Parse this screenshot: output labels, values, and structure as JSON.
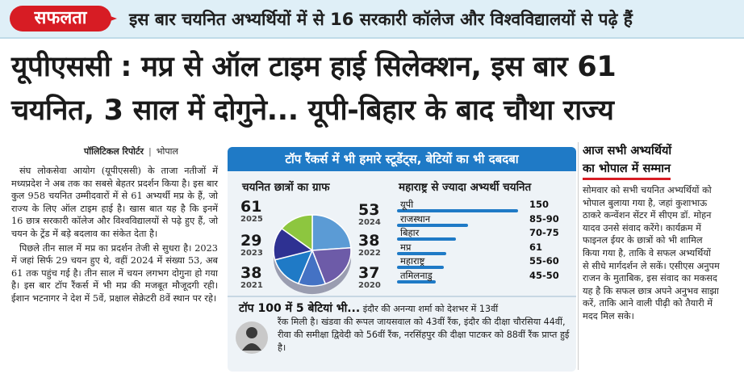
{
  "top_strip": {
    "badge": "सफलता",
    "text": "इस बार चयनित अभ्यर्थियों में से 16 सरकारी कॉलेज और विश्वविद्यालयों से पढ़े हैं"
  },
  "headline": {
    "line1": "यूपीएससी : मप्र से ऑल टाइम हाई सिलेक्शन, इस बार 61",
    "line2": "चयनित, 3 साल में दोगुने... यूपी-बिहार के बाद चौथा राज्य"
  },
  "byline": {
    "reporter": "पॉलिटिकल रिपोर्टर",
    "city": "भोपाल"
  },
  "left_column": {
    "para1": "संघ लोकसेवा आयोग (यूपीएससी) के ताजा नतीजों में मध्यप्रदेश ने अब तक का सबसे बेहतर प्रदर्शन किया है। इस बार कुल 958 चयनित उम्मीदवारों में से 61 अभ्यर्थी मप्र के हैं, जो राज्य के लिए ऑल टाइम हाई है। खास बात यह है कि इनमें 16 छात्र सरकारी कॉलेज और विश्वविद्यालयों से पढ़े हुए हैं, जो चयन के ट्रेंड में बड़े बदलाव का संकेत देता है।",
    "para2": "पिछले तीन साल में मप्र का प्रदर्शन तेजी से सुधरा है। 2023 में जहां सिर्फ 29 चयन हुए थे, वहीं 2024 में संख्या 53, अब 61 तक पहुंच गई है। तीन साल में चयन लगभग दोगुना हो गया है। इस बार टॉप रैंकर्स में भी मप्र की मजबूत मौजूदगी रही। ईशान भटनागर ने देश में 5वें, प्रक्षाल सेक्रेटरी 8वें स्थान पर रहे।"
  },
  "infographic": {
    "header": "टॉप रैंकर्स में भी हमारे स्टूडेंट्स, बेटियों का भी दबदबा",
    "graph_title": "चयनित छात्रों का ग्राफ",
    "states_title": "महाराष्ट्र से ज्यादा अभ्यर्थी चयनित"
  },
  "chart_data": [
    {
      "type": "pie",
      "title": "चयनित छात्रों का ग्राफ",
      "categories": [
        "2025",
        "2024",
        "2023",
        "2022",
        "2021",
        "2020"
      ],
      "values": [
        61,
        53,
        29,
        38,
        38,
        37
      ],
      "labels": [
        {
          "value": "61",
          "year": "2025"
        },
        {
          "value": "53",
          "year": "2024"
        },
        {
          "value": "29",
          "year": "2023"
        },
        {
          "value": "38",
          "year": "2022"
        },
        {
          "value": "38",
          "year": "2021"
        },
        {
          "value": "37",
          "year": "2020"
        }
      ],
      "colors": [
        "#5b9bd5",
        "#6d5ba8",
        "#4472c4",
        "#1f7ac6",
        "#2e3192",
        "#8dc63f"
      ]
    },
    {
      "type": "bar",
      "title": "महाराष्ट्र से ज्यादा अभ्यर्थी चयनित",
      "categories": [
        "यूपी",
        "राजस्थान",
        "बिहार",
        "मप्र",
        "महाराष्ट्र",
        "तमिलनाडु"
      ],
      "value_labels": [
        "150",
        "85-90",
        "70-75",
        "61",
        "55-60",
        "45-50"
      ],
      "values": [
        150,
        87.5,
        72.5,
        61,
        57.5,
        47.5
      ]
    }
  ],
  "daughters": {
    "lead": "टॉप 100 में 5 बेटियां भी...",
    "text": "इंदौर की अनन्या शर्मा को देशभर में 13वीं",
    "rest": "रैंक मिली है। खंडवा की रूपल जायसवाल को 43वीं रैंक, इंदौर की दीक्षा चौरसिया 44वीं, रीवा की समीक्षा द्विवेदी को 56वीं रैंक, नरसिंहपुर की दीक्षा पाटकर को 88वीं रैंक प्राप्त हुई है।",
    "icon": "woman-icon"
  },
  "right_column": {
    "head1": "आज सभी अभ्यर्थियों",
    "head2": "का भोपाल में सम्मान",
    "text": "सोमवार को सभी चयनित अभ्यर्थियों को भोपाल बुलाया गया है, जहां कुशाभाऊ ठाकरे कन्वेंशन सेंटर में सीएम डॉ. मोहन यादव उनसे संवाद करेंगे। कार्यक्रम में फाइनल ईयर के छात्रों को भी शामिल किया गया है, ताकि वे सफल अभ्यर्थियों से सीधे मार्गदर्शन ले सकें। एसीएस अनुपम राजन के मुताबिक, इस संवाद का मकसद यह है कि सफल छात्र अपने अनुभव साझा करें, ताकि आने वाली पीढ़ी को तैयारी में मदद मिल सके।"
  }
}
